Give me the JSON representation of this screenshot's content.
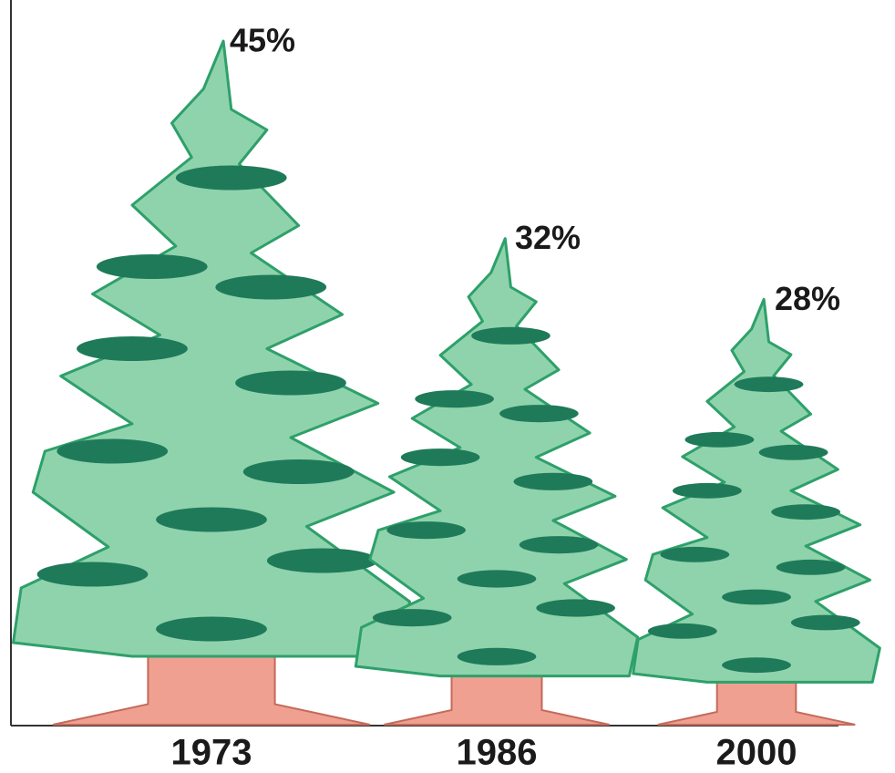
{
  "chart_data": {
    "type": "pictograph",
    "categories": [
      "1973",
      "1986",
      "2000"
    ],
    "values": [
      45,
      32,
      28
    ],
    "value_labels": [
      "45%",
      "32%",
      "28%"
    ],
    "color": "#8fd3ac"
  }
}
